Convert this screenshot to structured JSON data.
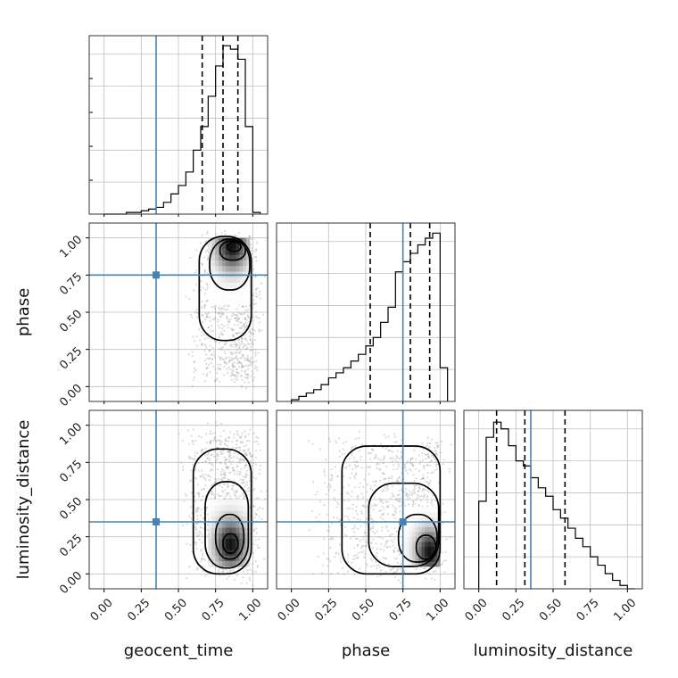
{
  "chart_data": {
    "type": "corner",
    "parameters": [
      "geocent_time",
      "phase",
      "luminosity_distance"
    ],
    "range": [
      -0.1,
      1.1
    ],
    "ticks": [
      0.0,
      0.25,
      0.5,
      0.75,
      1.0
    ],
    "tick_labels": [
      "0.00",
      "0.25",
      "0.50",
      "0.75",
      "1.00"
    ],
    "grid": true,
    "truth": {
      "geocent_time": 0.35,
      "phase": 0.75,
      "luminosity_distance": 0.35
    },
    "colors": {
      "truth": "#4682b4",
      "hist": "#000000",
      "samples": "#999999",
      "grid": "#bfbfbf"
    },
    "histograms": [
      {
        "param": "geocent_time",
        "bin_edges": [
          0.0,
          0.05,
          0.1,
          0.15,
          0.2,
          0.25,
          0.3,
          0.35,
          0.4,
          0.45,
          0.5,
          0.55,
          0.6,
          0.65,
          0.7,
          0.75,
          0.8,
          0.85,
          0.9,
          0.95,
          1.0
        ],
        "counts": [
          0.0,
          0.0,
          0.0,
          0.01,
          0.01,
          0.02,
          0.03,
          0.04,
          0.07,
          0.12,
          0.17,
          0.25,
          0.38,
          0.52,
          0.7,
          0.88,
          1.0,
          0.98,
          0.92,
          0.52,
          0.01
        ],
        "quantiles": [
          0.66,
          0.8,
          0.9
        ]
      },
      {
        "param": "phase",
        "bin_edges": [
          0.0,
          0.05,
          0.1,
          0.15,
          0.2,
          0.25,
          0.3,
          0.35,
          0.4,
          0.45,
          0.5,
          0.55,
          0.6,
          0.65,
          0.7,
          0.75,
          0.8,
          0.85,
          0.9,
          0.95,
          1.0
        ],
        "counts": [
          0.01,
          0.03,
          0.05,
          0.07,
          0.1,
          0.14,
          0.17,
          0.2,
          0.24,
          0.28,
          0.33,
          0.38,
          0.47,
          0.56,
          0.77,
          0.83,
          0.88,
          0.93,
          0.97,
          1.0,
          0.2
        ],
        "quantiles": [
          0.53,
          0.8,
          0.93
        ]
      },
      {
        "param": "luminosity_distance",
        "bin_edges": [
          0.0,
          0.05,
          0.1,
          0.15,
          0.2,
          0.25,
          0.3,
          0.35,
          0.4,
          0.45,
          0.5,
          0.55,
          0.6,
          0.65,
          0.7,
          0.75,
          0.8,
          0.85,
          0.9,
          0.95,
          1.0
        ],
        "counts": [
          0.52,
          0.9,
          0.99,
          0.95,
          0.85,
          0.76,
          0.73,
          0.66,
          0.6,
          0.55,
          0.47,
          0.42,
          0.36,
          0.3,
          0.25,
          0.19,
          0.14,
          0.09,
          0.05,
          0.02,
          0.0
        ],
        "quantiles": [
          0.12,
          0.31,
          0.58
        ]
      }
    ],
    "density_panels": [
      {
        "x": "geocent_time",
        "y": "phase",
        "peak": [
          0.86,
          0.95
        ],
        "core": {
          "x": [
            0.7,
            0.98
          ],
          "y": [
            0.55,
            1.0
          ]
        },
        "body": {
          "x": [
            0.6,
            1.0
          ],
          "y": [
            0.05,
            1.0
          ]
        },
        "contour_levels": [
          {
            "x": [
              0.64,
              0.99
            ],
            "y": [
              0.31,
              1.01
            ]
          },
          {
            "x": [
              0.71,
              0.98
            ],
            "y": [
              0.65,
              0.99
            ]
          },
          {
            "x": [
              0.78,
              0.95
            ],
            "y": [
              0.85,
              0.98
            ]
          },
          {
            "x": [
              0.83,
              0.92
            ],
            "y": [
              0.91,
              0.97
            ]
          }
        ]
      },
      {
        "x": "geocent_time",
        "y": "luminosity_distance",
        "peak": [
          0.85,
          0.2
        ],
        "core": {
          "x": [
            0.7,
            0.98
          ],
          "y": [
            0.05,
            0.5
          ]
        },
        "body": {
          "x": [
            0.55,
            1.0
          ],
          "y": [
            0.0,
            0.95
          ]
        },
        "contour_levels": [
          {
            "x": [
              0.6,
              0.99
            ],
            "y": [
              0.0,
              0.84
            ]
          },
          {
            "x": [
              0.68,
              0.97
            ],
            "y": [
              0.04,
              0.62
            ]
          },
          {
            "x": [
              0.75,
              0.94
            ],
            "y": [
              0.1,
              0.4
            ]
          },
          {
            "x": [
              0.8,
              0.9
            ],
            "y": [
              0.14,
              0.27
            ]
          }
        ]
      },
      {
        "x": "phase",
        "y": "luminosity_distance",
        "peak": [
          0.93,
          0.15
        ],
        "core": {
          "x": [
            0.75,
            1.0
          ],
          "y": [
            0.05,
            0.45
          ]
        },
        "body": {
          "x": [
            0.15,
            1.0
          ],
          "y": [
            0.0,
            0.9
          ]
        },
        "contour_levels": [
          {
            "x": [
              0.34,
              1.0
            ],
            "y": [
              0.0,
              0.86
            ]
          },
          {
            "x": [
              0.52,
              0.99
            ],
            "y": [
              0.05,
              0.61
            ]
          },
          {
            "x": [
              0.72,
              0.98
            ],
            "y": [
              0.08,
              0.4
            ]
          },
          {
            "x": [
              0.84,
              0.97
            ],
            "y": [
              0.1,
              0.26
            ]
          }
        ]
      }
    ]
  }
}
